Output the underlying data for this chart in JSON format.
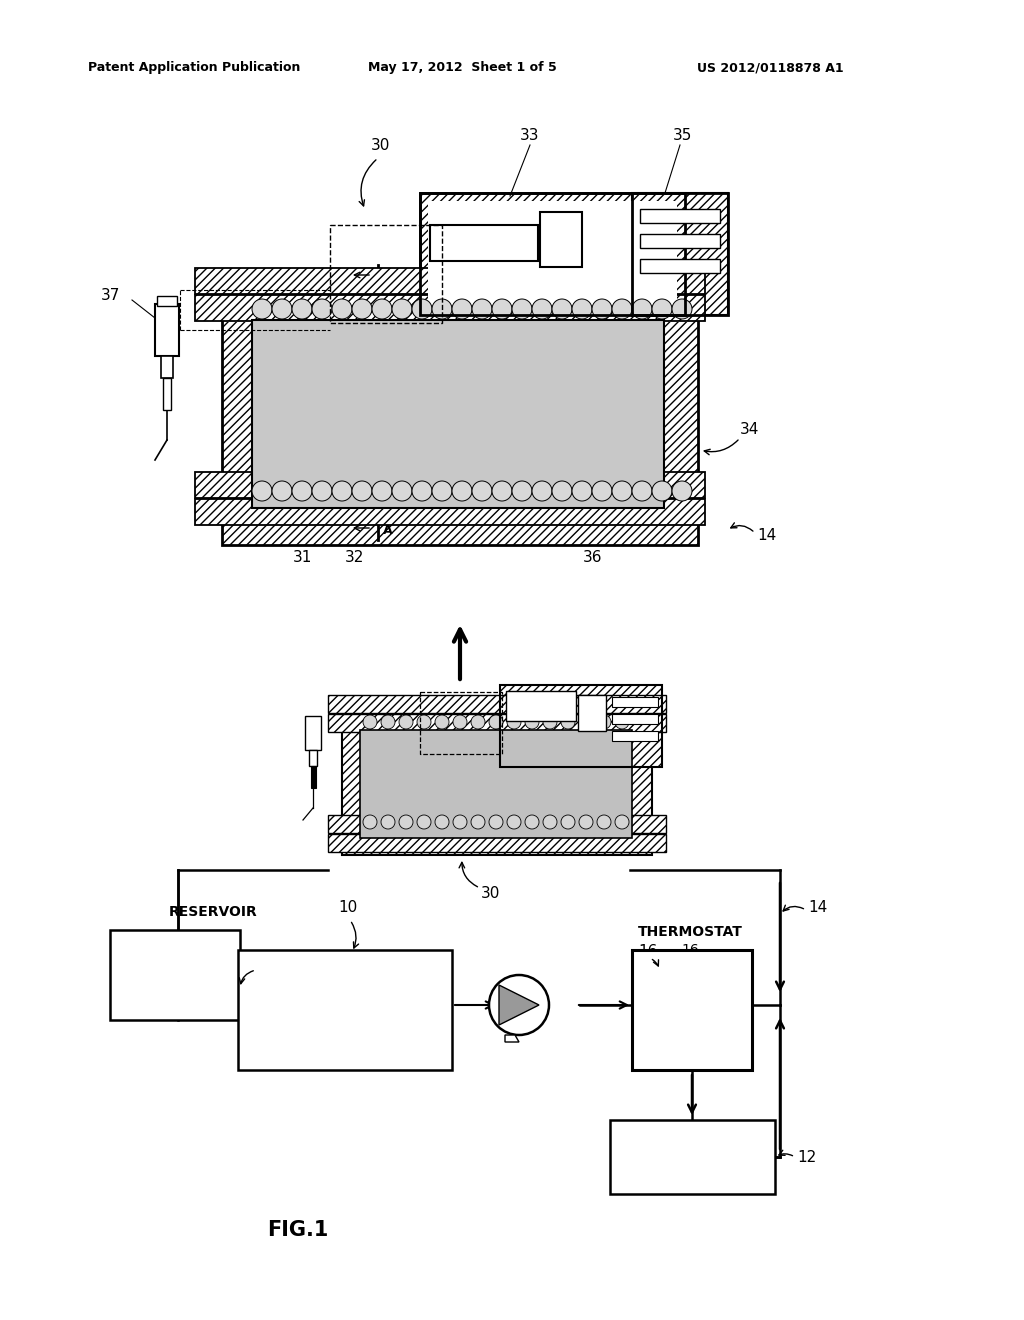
{
  "bg_color": "#ffffff",
  "header_left": "Patent Application Publication",
  "header_mid": "May 17, 2012  Sheet 1 of 5",
  "header_right": "US 2012/0118878 A1",
  "fig_label": "FIG.1",
  "gray_fill": "#c8c8c8",
  "hatch_fc": "white",
  "dark_box_fc": "white"
}
